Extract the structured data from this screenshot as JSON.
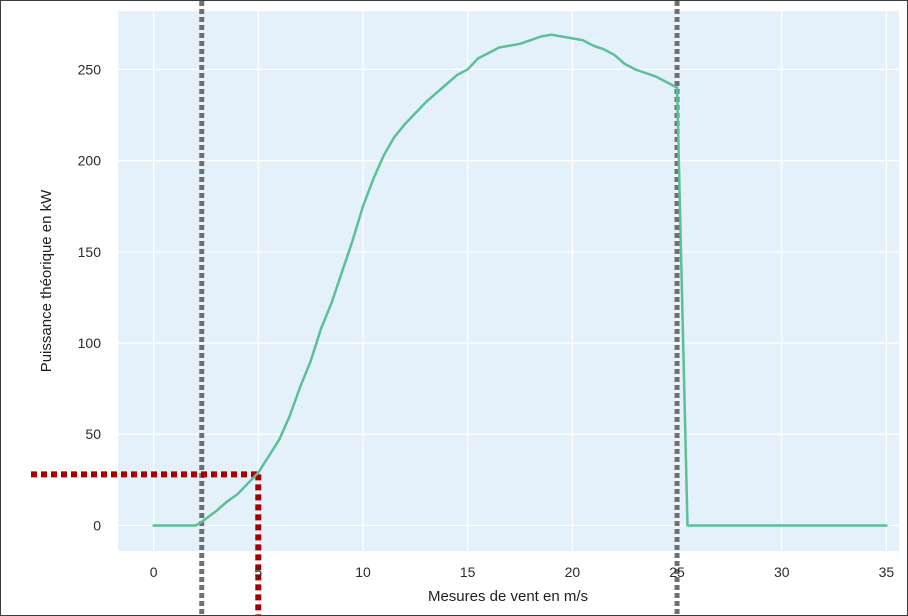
{
  "chart_data": {
    "type": "line",
    "title": "",
    "xlabel": "Mesures de vent en m/s",
    "ylabel": "Puissance théorique en kW",
    "xlim": [
      -1.7,
      35.6
    ],
    "ylim": [
      -14,
      282
    ],
    "xticks": [
      0,
      5,
      10,
      15,
      20,
      25,
      30,
      35
    ],
    "yticks": [
      0,
      50,
      100,
      150,
      200,
      250
    ],
    "grid": true,
    "legend": "none",
    "colors": {
      "plot_background": "#e5f1fa",
      "grid": "#ffffff",
      "curve": "#5dbf96",
      "cut_lines": "#707070",
      "marker_lines": "#a50000"
    },
    "series": [
      {
        "x": [
          0,
          2,
          2.3,
          3,
          3.5,
          4,
          4.5,
          5,
          5.5,
          6,
          6.5,
          7,
          7.5,
          8,
          8.5,
          9,
          9.5,
          10,
          10.5,
          11,
          11.5,
          12,
          12.5,
          13,
          13.5,
          14,
          14.5,
          15,
          15.5,
          16,
          16.5,
          17,
          17.5,
          18,
          18.5,
          19,
          19.5,
          20,
          20.5,
          21,
          21.5,
          22,
          22.5,
          23,
          23.5,
          24,
          24.5,
          25,
          25.5,
          26,
          27,
          28,
          29,
          30,
          31,
          32,
          33,
          34,
          35
        ],
        "y": [
          0,
          0,
          2,
          8,
          13,
          17,
          23,
          29,
          38,
          47,
          60,
          76,
          90,
          108,
          122,
          139,
          156,
          175,
          190,
          203,
          213,
          220,
          226,
          232,
          237,
          242,
          247,
          250,
          256,
          259,
          262,
          263,
          264,
          266,
          268,
          269,
          268,
          267,
          266,
          263,
          261,
          258,
          253,
          250,
          248,
          246,
          243,
          240,
          0,
          0,
          0,
          0,
          0,
          0,
          0,
          0,
          0,
          0,
          0
        ]
      }
    ],
    "reference_lines": {
      "vertical_cut_in": 2.3,
      "vertical_cut_out": 25,
      "marker_x": 5,
      "marker_y": 28
    }
  }
}
